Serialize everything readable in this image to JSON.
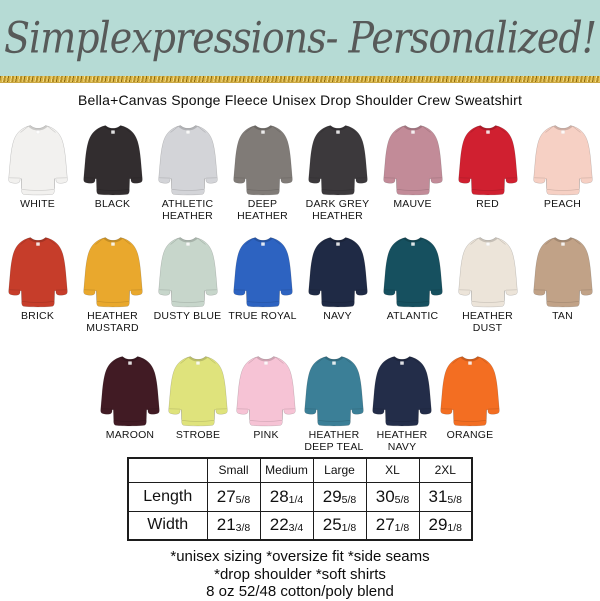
{
  "banner": {
    "title": "Simplexpressions- Personalized!",
    "bg_color": "#b6dbd5",
    "text_color": "#575a59",
    "glitter_color": "#d9b445"
  },
  "product": {
    "title": "Bella+Canvas Sponge Fleece Unisex Drop Shoulder Crew Sweatshirt"
  },
  "colors": {
    "rows": [
      [
        {
          "label": "WHITE",
          "hex": "#f2f1ef"
        },
        {
          "label": "BLACK",
          "hex": "#322d2f"
        },
        {
          "label": "ATHLETIC HEATHER",
          "hex": "#d3d4d8"
        },
        {
          "label": "DEEP HEATHER",
          "hex": "#807b77"
        },
        {
          "label": "DARK GREY HEATHER",
          "hex": "#3c393c"
        },
        {
          "label": "MAUVE",
          "hex": "#c28b98"
        },
        {
          "label": "RED",
          "hex": "#d02030"
        },
        {
          "label": "PEACH",
          "hex": "#f6d0c4"
        }
      ],
      [
        {
          "label": "BRICK",
          "hex": "#c63d2a"
        },
        {
          "label": "HEATHER MUSTARD",
          "hex": "#e9a82d"
        },
        {
          "label": "DUSTY BLUE",
          "hex": "#c7d6cb"
        },
        {
          "label": "TRUE ROYAL",
          "hex": "#2d63c1"
        },
        {
          "label": "NAVY",
          "hex": "#1f2a45"
        },
        {
          "label": "ATLANTIC",
          "hex": "#16505f"
        },
        {
          "label": "HEATHER DUST",
          "hex": "#ece4d9"
        },
        {
          "label": "TAN",
          "hex": "#c1a287"
        }
      ],
      [
        {
          "label": "MAROON",
          "hex": "#411b24"
        },
        {
          "label": "STROBE",
          "hex": "#dfe37c"
        },
        {
          "label": "PINK",
          "hex": "#f6c3d5"
        },
        {
          "label": "HEATHER DEEP TEAL",
          "hex": "#3b7f97"
        },
        {
          "label": "HEATHER NAVY",
          "hex": "#232d49"
        },
        {
          "label": "ORANGE",
          "hex": "#f36e22"
        }
      ]
    ]
  },
  "size_chart": {
    "columns": [
      "",
      "Small",
      "Medium",
      "Large",
      "XL",
      "2XL"
    ],
    "rows": [
      {
        "label": "Length",
        "values": [
          {
            "whole": "27",
            "frac": "5/8"
          },
          {
            "whole": "28",
            "frac": "1/4"
          },
          {
            "whole": "29",
            "frac": "5/8"
          },
          {
            "whole": "30",
            "frac": "5/8"
          },
          {
            "whole": "31",
            "frac": "5/8"
          }
        ]
      },
      {
        "label": "Width",
        "values": [
          {
            "whole": "21",
            "frac": "3/8"
          },
          {
            "whole": "22",
            "frac": "3/4"
          },
          {
            "whole": "25",
            "frac": "1/8"
          },
          {
            "whole": "27",
            "frac": "1/8"
          },
          {
            "whole": "29",
            "frac": "1/8"
          }
        ]
      }
    ]
  },
  "footer": {
    "lines": [
      "*unisex sizing *oversize fit *side seams",
      "*drop shoulder *soft shirts",
      "8 oz 52/48 cotton/poly blend"
    ]
  }
}
